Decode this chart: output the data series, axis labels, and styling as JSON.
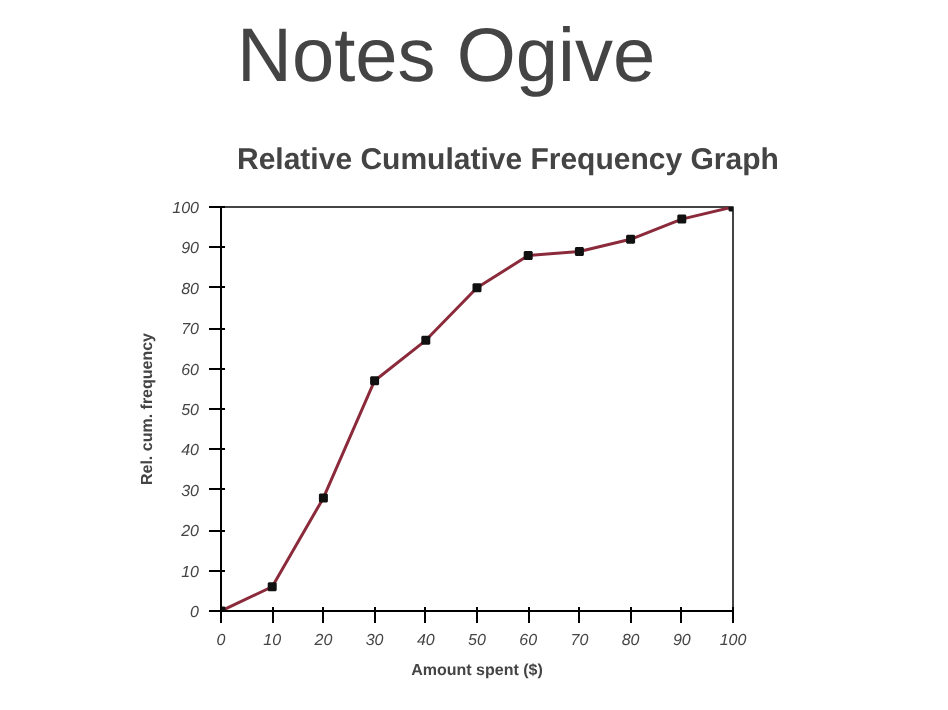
{
  "chart_data": {
    "type": "line",
    "title": "Notes Ogive",
    "subtitle": "Relative Cumulative Frequency Graph",
    "xlabel": "Amount spent ($)",
    "ylabel": "Rel. cum. frequency",
    "x": [
      0,
      10,
      20,
      30,
      40,
      50,
      60,
      70,
      80,
      90,
      100
    ],
    "series": [
      {
        "color": "#8b2a3a",
        "values": [
          0,
          6,
          28,
          57,
          67,
          80,
          88,
          89,
          92,
          97,
          100
        ]
      }
    ],
    "xlim": [
      0,
      100
    ],
    "ylim": [
      0,
      100
    ],
    "xticks": [
      0,
      10,
      20,
      30,
      40,
      50,
      60,
      70,
      80,
      90,
      100
    ],
    "yticks": [
      0,
      10,
      20,
      30,
      40,
      50,
      60,
      70,
      80,
      90,
      100
    ],
    "grid": false,
    "marker": "square",
    "line_style": "solid"
  }
}
